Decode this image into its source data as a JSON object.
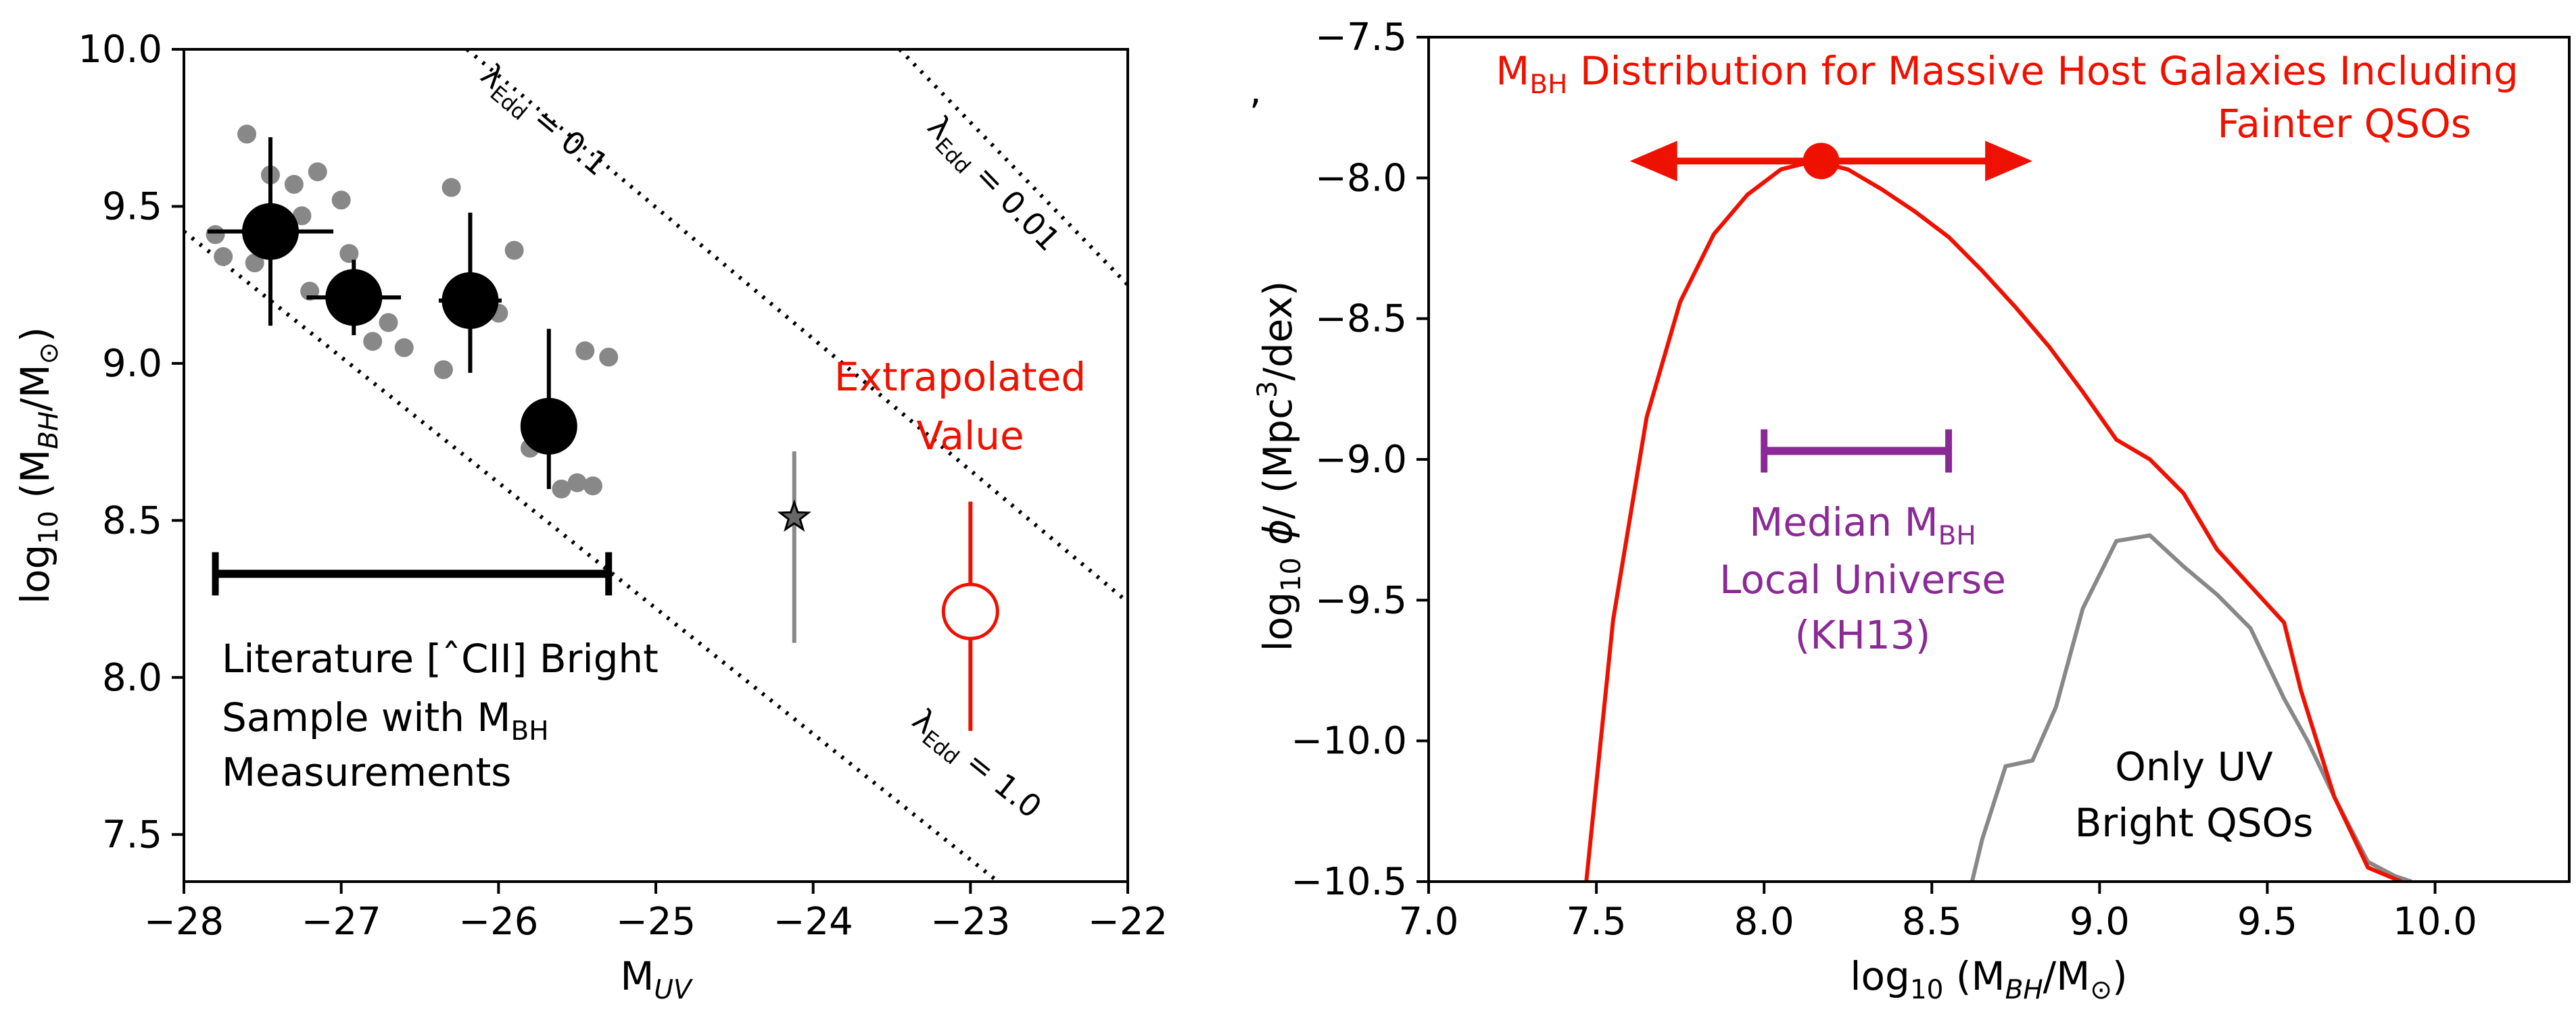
{
  "stray_mark": ",",
  "chart_data": [
    {
      "type": "scatter",
      "xlabel": "M",
      "xlabel_sub": "UV",
      "ylabel_parts": [
        "log",
        "10",
        " (M",
        "BH",
        "/M",
        "⊙",
        ")"
      ],
      "xlim": [
        -28,
        -22
      ],
      "ylim": [
        7.35,
        10.0
      ],
      "xticks": [
        -28,
        -27,
        -26,
        -25,
        -24,
        -23,
        -22
      ],
      "yticks": [
        7.5,
        8.0,
        8.5,
        9.0,
        9.5,
        10.0
      ],
      "xtick_labels": [
        "−28",
        "−27",
        "−26",
        "−25",
        "−24",
        "−23",
        "−22"
      ],
      "ytick_labels": [
        "7.5",
        "8.0",
        "8.5",
        "9.0",
        "9.5",
        "10.0"
      ],
      "grid": false,
      "eddington_lines": [
        {
          "lambda": 1.0,
          "label": [
            "λ",
            "Edd",
            " = 1.0"
          ],
          "label_at": [
            -23.0,
            7.7
          ],
          "points": [
            [
              -28,
              9.42
            ],
            [
              -22.2,
              7.1
            ]
          ]
        },
        {
          "lambda": 0.1,
          "label": [
            "λ",
            "Edd",
            " = 0.1"
          ],
          "label_at": [
            -25.75,
            9.75
          ],
          "points": [
            [
              -26.2,
              10.0
            ],
            [
              -22.0,
              8.24
            ]
          ]
        },
        {
          "lambda": 0.01,
          "label": [
            "λ",
            "Edd",
            " = 0.01"
          ],
          "label_at": [
            -22.9,
            9.55
          ],
          "points": [
            [
              -23.45,
              10.0
            ],
            [
              -22.0,
              9.25
            ]
          ]
        }
      ],
      "gray_points": {
        "x": [
          -27.8,
          -27.75,
          -27.6,
          -27.55,
          -27.45,
          -27.3,
          -27.25,
          -27.2,
          -27.15,
          -27.0,
          -26.95,
          -26.9,
          -26.85,
          -26.8,
          -26.7,
          -26.6,
          -26.35,
          -26.3,
          -26.1,
          -26.0,
          -25.9,
          -25.8,
          -25.75,
          -25.7,
          -25.6,
          -25.5,
          -25.45,
          -25.4,
          -25.3
        ],
        "y": [
          9.41,
          9.34,
          9.73,
          9.32,
          9.6,
          9.57,
          9.47,
          9.23,
          9.61,
          9.52,
          9.35,
          9.18,
          9.16,
          9.07,
          9.13,
          9.05,
          8.98,
          9.56,
          9.19,
          9.16,
          9.36,
          8.73,
          8.8,
          8.8,
          8.6,
          8.62,
          9.04,
          8.61,
          9.02
        ]
      },
      "binned_points": [
        {
          "x": -27.45,
          "y": 9.42,
          "xerr": 0.4,
          "yerr": [
            0.3,
            0.3
          ]
        },
        {
          "x": -26.92,
          "y": 9.21,
          "xerr": 0.3,
          "yerr": [
            0.12,
            0.12
          ]
        },
        {
          "x": -26.18,
          "y": 9.2,
          "xerr": 0.2,
          "yerr": [
            0.23,
            0.28
          ]
        },
        {
          "x": -25.68,
          "y": 8.8,
          "xerr": 0.15,
          "yerr": [
            0.2,
            0.31
          ]
        }
      ],
      "star_point": {
        "x": -24.12,
        "y": 8.51,
        "yerr": [
          0.4,
          0.21
        ],
        "color": "#888888"
      },
      "extrapolated": {
        "x": -23.0,
        "y": 8.21,
        "yerr": [
          0.38,
          0.35
        ],
        "color": "#ee1100",
        "label": [
          "Extrapolated",
          "Value"
        ]
      },
      "sample_bar": {
        "x0": -27.8,
        "x1": -25.3,
        "y": 8.33
      },
      "sample_label": [
        "Literature [ˆCII] Bright",
        "Sample with M",
        "BH",
        "Measurements"
      ]
    },
    {
      "type": "line",
      "xlabel_parts": [
        "log",
        "10",
        " (M",
        "BH",
        "/M",
        "⊙",
        ")"
      ],
      "ylabel_parts": [
        "log",
        "10",
        " ",
        "ϕ",
        "/ (Mpc",
        "3",
        "/dex)"
      ],
      "xlim": [
        7.0,
        10.4
      ],
      "ylim": [
        -10.5,
        -7.5
      ],
      "xticks": [
        7.0,
        7.5,
        8.0,
        8.5,
        9.0,
        9.5,
        10.0
      ],
      "yticks": [
        -10.5,
        -10.0,
        -9.5,
        -9.0,
        -8.5,
        -8.0,
        -7.5
      ],
      "xtick_labels": [
        "7.0",
        "7.5",
        "8.0",
        "8.5",
        "9.0",
        "9.5",
        "10.0"
      ],
      "ytick_labels": [
        "−10.5",
        "−10.0",
        "−9.5",
        "−9.0",
        "−8.5",
        "−8.0",
        "−7.5"
      ],
      "grid": false,
      "series": [
        {
          "color": "#ee1100",
          "x": [
            7.47,
            7.55,
            7.65,
            7.75,
            7.85,
            7.95,
            8.05,
            8.15,
            8.25,
            8.35,
            8.45,
            8.55,
            8.65,
            8.75,
            8.85,
            8.95,
            9.05,
            9.15,
            9.25,
            9.35,
            9.45,
            9.55,
            9.6,
            9.7,
            9.8,
            9.9
          ],
          "y": [
            -10.5,
            -9.57,
            -8.85,
            -8.44,
            -8.2,
            -8.06,
            -7.97,
            -7.94,
            -7.97,
            -8.04,
            -8.12,
            -8.21,
            -8.33,
            -8.46,
            -8.6,
            -8.76,
            -8.93,
            -9.0,
            -9.12,
            -9.32,
            -9.45,
            -9.58,
            -9.82,
            -10.2,
            -10.45,
            -10.5
          ]
        },
        {
          "color": "#888888",
          "x": [
            8.62,
            8.65,
            8.72,
            8.8,
            8.87,
            8.95,
            9.05,
            9.15,
            9.25,
            9.35,
            9.45,
            9.55,
            9.62,
            9.7,
            9.8,
            9.88,
            9.93
          ],
          "y": [
            -10.5,
            -10.35,
            -10.09,
            -10.07,
            -9.88,
            -9.53,
            -9.29,
            -9.27,
            -9.38,
            -9.48,
            -9.6,
            -9.85,
            -10.0,
            -10.2,
            -10.43,
            -10.48,
            -10.5
          ]
        }
      ],
      "massive_host": {
        "x": 8.17,
        "y": -7.94,
        "arrow_from": 7.6,
        "arrow_to": 8.8,
        "color": "#ee1100",
        "label": [
          "M",
          "BH",
          " Distribution for Massive Host Galaxies Including",
          "Fainter QSOs"
        ]
      },
      "median_local": {
        "x0": 8.0,
        "x1": 8.55,
        "y": -8.97,
        "color": "#8b2a96",
        "label": [
          "Median M",
          "BH",
          "Local Universe",
          "(KH13)"
        ]
      },
      "uv_label": [
        "Only UV",
        "Bright QSOs"
      ]
    }
  ]
}
